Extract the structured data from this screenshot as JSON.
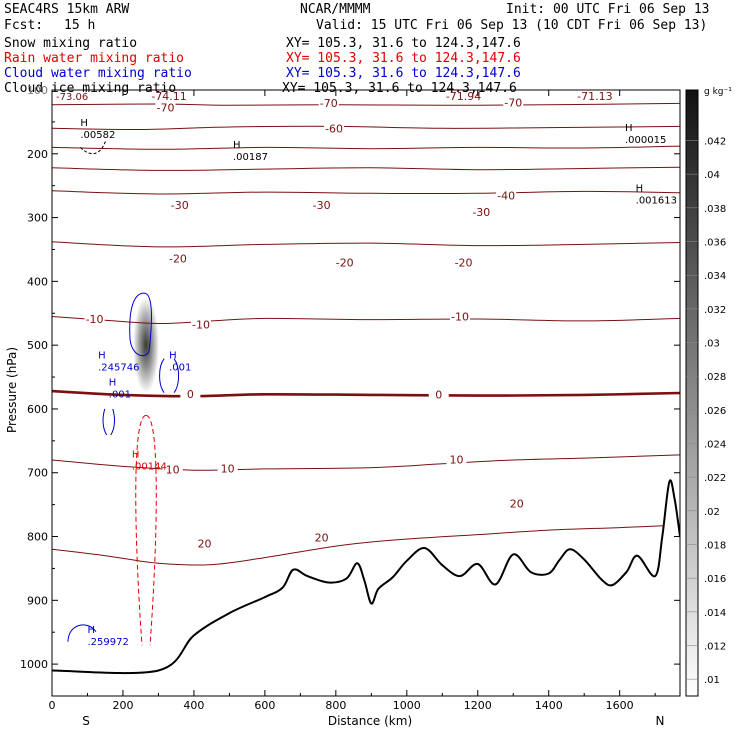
{
  "header": {
    "model": "SEAC4RS 15km ARW",
    "center": "NCAR/MMMM",
    "init": "Init: 00 UTC Fri 06 Sep 13",
    "fcst_label": "Fcst:",
    "fcst_value": "15 h",
    "valid": "Valid: 15 UTC Fri 06 Sep 13 (10 CDT Fri 06 Sep 13)"
  },
  "fields": [
    {
      "name": "Snow mixing ratio",
      "xy": "XY= 105.3, 31.6 to 124.3,147.6",
      "color": "#000000"
    },
    {
      "name": "Rain water mixing ratio",
      "xy": "XY= 105.3, 31.6 to 124.3,147.6",
      "color": "#e00000"
    },
    {
      "name": "Cloud water mixing ratio",
      "xy": "XY= 105.3, 31.6 to 124.3,147.6",
      "color": "#0000cc"
    },
    {
      "name": "Cloud ice mixing ratio",
      "xy": "XY= 105.3, 31.6 to 124.3,147.6",
      "color": "#000000"
    }
  ],
  "colors": {
    "temperature": "#7a1010",
    "rain": "#e00000",
    "cloud": "#0000cc",
    "terrain": "#000000"
  },
  "chart_data": {
    "type": "cross-section",
    "xlabel": "Distance (km)",
    "ylabel": "Pressure (hPa)",
    "xlim": [
      0,
      1770
    ],
    "ylim": [
      1050,
      100
    ],
    "xticks": [
      0,
      200,
      400,
      600,
      800,
      1000,
      1200,
      1400,
      1600
    ],
    "yticks": [
      200,
      300,
      400,
      500,
      600,
      700,
      800,
      900,
      1000
    ],
    "ytick_labels": [
      "200",
      "300",
      "400",
      "500",
      "600",
      "700",
      "800",
      "900",
      "1000"
    ],
    "y_top_label": "100",
    "end_labels": {
      "left": "S",
      "right": "N"
    },
    "colorbar": {
      "unit": "g kg⁻¹",
      "ticks": [
        0.01,
        0.012,
        0.014,
        0.016,
        0.018,
        0.02,
        0.022,
        0.024,
        0.026,
        0.028,
        0.03,
        0.032,
        0.034,
        0.036,
        0.038,
        0.04,
        0.042
      ],
      "labels": [
        ".01",
        ".012",
        ".014",
        ".016",
        ".018",
        ".02",
        ".022",
        ".024",
        ".026",
        ".028",
        ".03",
        ".032",
        ".034",
        ".036",
        ".038",
        ".04",
        ".042"
      ],
      "range": [
        0.009,
        0.045
      ]
    },
    "temperature_isotherms": [
      {
        "t": -70,
        "pts": [
          [
            0,
            123
          ],
          [
            300,
            122
          ],
          [
            500,
            124
          ],
          [
            800,
            123
          ],
          [
            1100,
            124
          ],
          [
            1400,
            123
          ],
          [
            1770,
            121
          ]
        ]
      },
      {
        "t": -60,
        "pts": [
          [
            0,
            160
          ],
          [
            250,
            162
          ],
          [
            500,
            158
          ],
          [
            800,
            157
          ],
          [
            1100,
            160
          ],
          [
            1400,
            159
          ],
          [
            1770,
            157
          ]
        ]
      },
      {
        "t": -50,
        "pts": [
          [
            0,
            190
          ],
          [
            300,
            193
          ],
          [
            600,
            190
          ],
          [
            900,
            192
          ],
          [
            1200,
            190
          ],
          [
            1500,
            191
          ],
          [
            1770,
            188
          ]
        ]
      },
      {
        "t": -40,
        "pts": [
          [
            0,
            222
          ],
          [
            300,
            226
          ],
          [
            600,
            224
          ],
          [
            900,
            222
          ],
          [
            1200,
            225
          ],
          [
            1500,
            223
          ],
          [
            1770,
            221
          ]
        ]
      },
      {
        "t": -30,
        "pts": [
          [
            0,
            258
          ],
          [
            300,
            263
          ],
          [
            600,
            260
          ],
          [
            900,
            262
          ],
          [
            1200,
            262
          ],
          [
            1500,
            259
          ],
          [
            1770,
            261
          ]
        ]
      },
      {
        "t": -20,
        "pts": [
          [
            0,
            338
          ],
          [
            300,
            346
          ],
          [
            600,
            342
          ],
          [
            900,
            340
          ],
          [
            1200,
            344
          ],
          [
            1500,
            342
          ],
          [
            1770,
            339
          ]
        ]
      },
      {
        "t": -10,
        "pts": [
          [
            0,
            455
          ],
          [
            150,
            461
          ],
          [
            300,
            466
          ],
          [
            450,
            462
          ],
          [
            600,
            458
          ],
          [
            900,
            460
          ],
          [
            1200,
            459
          ],
          [
            1500,
            462
          ],
          [
            1770,
            458
          ]
        ]
      },
      {
        "t": 0,
        "pts": [
          [
            0,
            572
          ],
          [
            200,
            578
          ],
          [
            400,
            580
          ],
          [
            600,
            577
          ],
          [
            900,
            578
          ],
          [
            1200,
            579
          ],
          [
            1500,
            578
          ],
          [
            1770,
            575
          ]
        ]
      },
      {
        "t": 10,
        "pts": [
          [
            0,
            680
          ],
          [
            200,
            690
          ],
          [
            400,
            696
          ],
          [
            600,
            694
          ],
          [
            900,
            692
          ],
          [
            1100,
            686
          ],
          [
            1300,
            680
          ],
          [
            1500,
            677
          ],
          [
            1770,
            672
          ]
        ]
      },
      {
        "t": 20,
        "pts": [
          [
            0,
            820
          ],
          [
            150,
            830
          ],
          [
            300,
            842
          ],
          [
            450,
            844
          ],
          [
            600,
            833
          ],
          [
            800,
            815
          ],
          [
            950,
            806
          ],
          [
            1200,
            797
          ],
          [
            1400,
            790
          ],
          [
            1600,
            786
          ],
          [
            1770,
            782
          ]
        ]
      }
    ],
    "temperature_labels": [
      {
        "text": "-70",
        "x": 320,
        "p": 132
      },
      {
        "text": "-70",
        "x": 780,
        "p": 125
      },
      {
        "text": "-70",
        "x": 1300,
        "p": 124
      },
      {
        "text": "-60",
        "x": 795,
        "p": 165
      },
      {
        "text": "-40",
        "x": 1280,
        "p": 270
      },
      {
        "text": "-30",
        "x": 360,
        "p": 285
      },
      {
        "text": "-30",
        "x": 760,
        "p": 285
      },
      {
        "text": "-30",
        "x": 1210,
        "p": 296
      },
      {
        "text": "-20",
        "x": 355,
        "p": 369
      },
      {
        "text": "-20",
        "x": 825,
        "p": 375
      },
      {
        "text": "-20",
        "x": 1160,
        "p": 375
      },
      {
        "text": "-10",
        "x": 120,
        "p": 464
      },
      {
        "text": "-10",
        "x": 420,
        "p": 472
      },
      {
        "text": "-10",
        "x": 1150,
        "p": 460
      },
      {
        "text": "0",
        "x": 390,
        "p": 581
      },
      {
        "text": "0",
        "x": 1090,
        "p": 582
      },
      {
        "text": "10",
        "x": 340,
        "p": 700
      },
      {
        "text": "10",
        "x": 495,
        "p": 698
      },
      {
        "text": "10",
        "x": 1140,
        "p": 684
      },
      {
        "text": "20",
        "x": 430,
        "p": 816
      },
      {
        "text": "20",
        "x": 760,
        "p": 806
      },
      {
        "text": "20",
        "x": 1310,
        "p": 753
      }
    ],
    "terrain": [
      [
        0,
        1010
      ],
      [
        300,
        1010
      ],
      [
        400,
        955
      ],
      [
        500,
        920
      ],
      [
        600,
        895
      ],
      [
        650,
        880
      ],
      [
        680,
        852
      ],
      [
        720,
        862
      ],
      [
        780,
        872
      ],
      [
        830,
        866
      ],
      [
        860,
        842
      ],
      [
        880,
        868
      ],
      [
        900,
        905
      ],
      [
        920,
        882
      ],
      [
        960,
        864
      ],
      [
        1000,
        838
      ],
      [
        1050,
        818
      ],
      [
        1100,
        845
      ],
      [
        1150,
        862
      ],
      [
        1200,
        843
      ],
      [
        1250,
        875
      ],
      [
        1300,
        828
      ],
      [
        1350,
        856
      ],
      [
        1400,
        858
      ],
      [
        1430,
        837
      ],
      [
        1460,
        820
      ],
      [
        1500,
        836
      ],
      [
        1550,
        868
      ],
      [
        1580,
        876
      ],
      [
        1620,
        855
      ],
      [
        1650,
        830
      ],
      [
        1700,
        862
      ],
      [
        1720,
        800
      ],
      [
        1740,
        714
      ],
      [
        1755,
        742
      ],
      [
        1770,
        800
      ]
    ],
    "extremum_labels": [
      {
        "marker": "H",
        "value": ".00582",
        "x": 80,
        "p": 175,
        "color": "black"
      },
      {
        "marker": "H",
        "value": ".00187",
        "x": 510,
        "p": 210,
        "color": "black"
      },
      {
        "marker": "H",
        "value": ".000015",
        "x": 1615,
        "p": 183,
        "color": "black"
      },
      {
        "marker": "H",
        "value": ".001613",
        "x": 1645,
        "p": 278,
        "color": "black"
      },
      {
        "marker": "H",
        "value": ".245746",
        "x": 130,
        "p": 540,
        "color": "blue"
      },
      {
        "marker": "H",
        "value": ".001",
        "x": 330,
        "p": 540,
        "color": "blue"
      },
      {
        "marker": "H",
        "value": ".001",
        "x": 160,
        "p": 582,
        "color": "blue"
      },
      {
        "marker": "H",
        "value": ".00144",
        "x": 225,
        "p": 695,
        "color": "red"
      },
      {
        "marker": "H",
        "value": ".259972",
        "x": 100,
        "p": 970,
        "color": "blue"
      }
    ],
    "top_labels": [
      "-74.11",
      "-71.94",
      "-71.13"
    ],
    "top_left_label": "-73.06",
    "snow_max": {
      "x": 265,
      "p": 500,
      "value": 0.042
    }
  }
}
